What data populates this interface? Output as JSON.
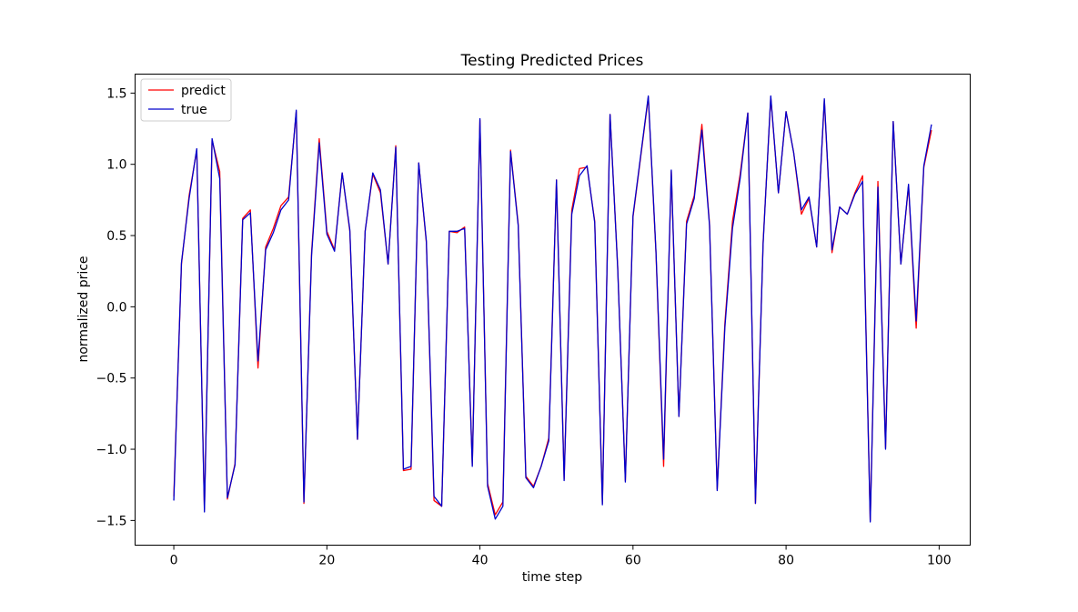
{
  "chart_data": {
    "type": "line",
    "title": "Testing Predicted Prices",
    "xlabel": "time step",
    "ylabel": "normalized price",
    "xlim": [
      -5,
      104
    ],
    "ylim": [
      -1.67,
      1.63
    ],
    "xticks": [
      0,
      20,
      40,
      60,
      80,
      100
    ],
    "xtick_labels": [
      "0",
      "20",
      "40",
      "60",
      "80",
      "100"
    ],
    "yticks": [
      -1.5,
      -1.0,
      -0.5,
      0.0,
      0.5,
      1.0,
      1.5
    ],
    "ytick_labels": [
      "−1.5",
      "−1.0",
      "−0.5",
      "0.0",
      "0.5",
      "1.0",
      "1.5"
    ],
    "grid": false,
    "legend_position": "upper-left",
    "x": [
      0,
      1,
      2,
      3,
      4,
      5,
      6,
      7,
      8,
      9,
      10,
      11,
      12,
      13,
      14,
      15,
      16,
      17,
      18,
      19,
      20,
      21,
      22,
      23,
      24,
      25,
      26,
      27,
      28,
      29,
      30,
      31,
      32,
      33,
      34,
      35,
      36,
      37,
      38,
      39,
      40,
      41,
      42,
      43,
      44,
      45,
      46,
      47,
      48,
      49,
      50,
      51,
      52,
      53,
      54,
      55,
      56,
      57,
      58,
      59,
      60,
      61,
      62,
      63,
      64,
      65,
      66,
      67,
      68,
      69,
      70,
      71,
      72,
      73,
      74,
      75,
      76,
      77,
      78,
      79,
      80,
      81,
      82,
      83,
      84,
      85,
      86,
      87,
      88,
      89,
      90,
      91,
      92,
      93,
      94,
      95,
      96,
      97,
      98,
      99
    ],
    "series": [
      {
        "name": "predict",
        "color": "#ff0000",
        "values": [
          -1.33,
          0.3,
          0.78,
          1.1,
          -1.42,
          1.17,
          0.95,
          -1.35,
          -1.1,
          0.62,
          0.68,
          -0.43,
          0.42,
          0.55,
          0.71,
          0.77,
          1.37,
          -1.38,
          0.38,
          1.18,
          0.53,
          0.4,
          0.94,
          0.53,
          -0.93,
          0.53,
          0.93,
          0.8,
          0.3,
          1.13,
          -1.15,
          -1.14,
          1.01,
          0.45,
          -1.36,
          -1.4,
          0.53,
          0.52,
          0.56,
          -1.11,
          1.31,
          -1.24,
          -1.46,
          -1.37,
          1.1,
          0.58,
          -1.19,
          -1.26,
          -1.12,
          -0.92,
          0.89,
          -1.21,
          0.68,
          0.97,
          0.98,
          0.6,
          -1.38,
          1.35,
          0.28,
          -1.22,
          0.63,
          1.05,
          1.47,
          0.38,
          -1.12,
          0.95,
          -0.77,
          0.6,
          0.78,
          1.28,
          0.58,
          -1.28,
          -0.12,
          0.6,
          0.93,
          1.36,
          -1.38,
          0.45,
          1.47,
          0.8,
          1.37,
          1.08,
          0.65,
          0.76,
          0.42,
          1.45,
          0.38,
          0.7,
          0.65,
          0.8,
          0.92,
          -1.5,
          0.88,
          -0.99,
          1.3,
          0.3,
          0.85,
          -0.15,
          0.98,
          1.24
        ]
      },
      {
        "name": "true",
        "color": "#0000cc",
        "values": [
          -1.36,
          0.31,
          0.76,
          1.11,
          -1.44,
          1.18,
          0.9,
          -1.34,
          -1.11,
          0.61,
          0.66,
          -0.38,
          0.4,
          0.52,
          0.68,
          0.75,
          1.38,
          -1.37,
          0.36,
          1.15,
          0.51,
          0.39,
          0.94,
          0.54,
          -0.93,
          0.53,
          0.94,
          0.82,
          0.3,
          1.12,
          -1.14,
          -1.12,
          1.01,
          0.46,
          -1.33,
          -1.4,
          0.53,
          0.53,
          0.55,
          -1.12,
          1.32,
          -1.26,
          -1.49,
          -1.4,
          1.09,
          0.57,
          -1.2,
          -1.27,
          -1.12,
          -0.94,
          0.89,
          -1.22,
          0.65,
          0.92,
          0.99,
          0.59,
          -1.39,
          1.35,
          0.27,
          -1.23,
          0.64,
          1.06,
          1.48,
          0.39,
          -1.07,
          0.96,
          -0.77,
          0.58,
          0.76,
          1.24,
          0.57,
          -1.29,
          -0.15,
          0.55,
          0.9,
          1.36,
          -1.38,
          0.44,
          1.48,
          0.8,
          1.37,
          1.08,
          0.68,
          0.77,
          0.42,
          1.46,
          0.4,
          0.7,
          0.65,
          0.79,
          0.88,
          -1.51,
          0.84,
          -1.0,
          1.3,
          0.3,
          0.86,
          -0.1,
          0.99,
          1.28
        ]
      }
    ]
  }
}
